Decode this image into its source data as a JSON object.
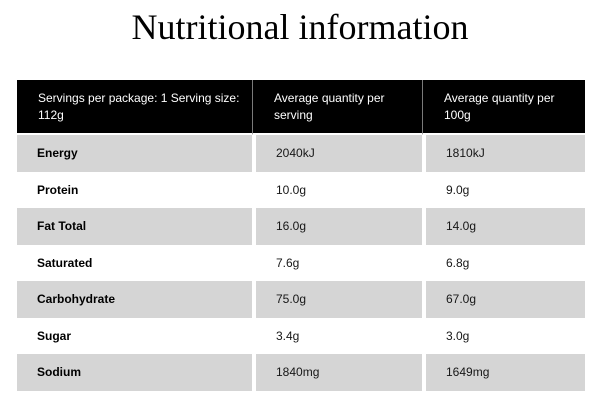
{
  "page": {
    "title": "Nutritional information"
  },
  "table": {
    "header": [
      {
        "line1": "Servings per package: 1 Serving size:",
        "line2": "112g"
      },
      {
        "line1": "Average quantity per",
        "line2": "serving"
      },
      {
        "line1": "Average quantity per",
        "line2": "100g"
      }
    ],
    "rows": [
      {
        "label": "Energy",
        "per_serving": "2040kJ",
        "per_100g": "1810kJ"
      },
      {
        "label": "Protein",
        "per_serving": "10.0g",
        "per_100g": "9.0g"
      },
      {
        "label": "Fat Total",
        "per_serving": "16.0g",
        "per_100g": "14.0g"
      },
      {
        "label": "Saturated",
        "per_serving": "7.6g",
        "per_100g": "6.8g"
      },
      {
        "label": "Carbohydrate",
        "per_serving": "75.0g",
        "per_100g": "67.0g"
      },
      {
        "label": "Sugar",
        "per_serving": "3.4g",
        "per_100g": "3.0g"
      },
      {
        "label": "Sodium",
        "per_serving": "1840mg",
        "per_100g": "1649mg"
      }
    ]
  },
  "colors": {
    "header_bg": "#000000",
    "header_text": "#ffffff",
    "header_divider": "#7a7a7a",
    "alt_row_bg": "#d5d5d5",
    "row_bg": "#ffffff",
    "title_text": "#000000"
  }
}
